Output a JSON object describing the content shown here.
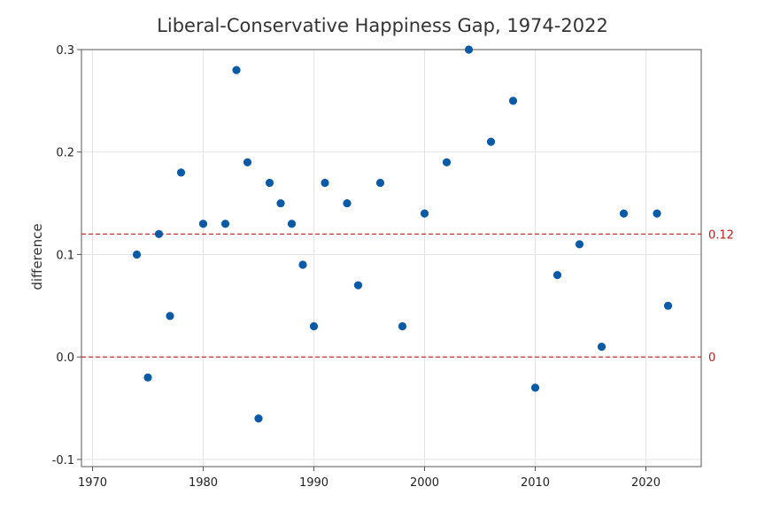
{
  "chart_data": {
    "type": "scatter",
    "title": "Liberal-Conservative Happiness Gap, 1974-2022",
    "xlabel": "",
    "ylabel": "difference",
    "xlim": [
      1969,
      2025
    ],
    "ylim": [
      -0.107,
      0.3
    ],
    "x_ticks": [
      1970,
      1980,
      1990,
      2000,
      2010,
      2020
    ],
    "x_tick_labels": [
      "1970",
      "1980",
      "1990",
      "2000",
      "2010",
      "2020"
    ],
    "y_ticks": [
      -0.1,
      0.0,
      0.1,
      0.2,
      0.3
    ],
    "y_tick_labels": [
      "-0.1",
      "0.0",
      "0.1",
      "0.2",
      "0.3"
    ],
    "grid": true,
    "marker_color": "#0b5aa5",
    "reference_color": "#b22222",
    "reference_lines": [
      {
        "y": 0.12,
        "label": "0.12"
      },
      {
        "y": 0.0,
        "label": "0"
      }
    ],
    "series": [
      {
        "x": [
          1974,
          1975,
          1976,
          1977,
          1978,
          1980,
          1982,
          1983,
          1984,
          1985,
          1986,
          1987,
          1988,
          1989,
          1990,
          1991,
          1993,
          1994,
          1996,
          1998,
          2000,
          2002,
          2004,
          2006,
          2008,
          2010,
          2012,
          2014,
          2016,
          2018,
          2021,
          2022
        ],
        "y": [
          0.1,
          -0.02,
          0.12,
          0.04,
          0.18,
          0.13,
          0.13,
          0.28,
          0.19,
          -0.06,
          0.17,
          0.15,
          0.13,
          0.09,
          0.03,
          0.17,
          0.15,
          0.07,
          0.17,
          0.03,
          0.14,
          0.19,
          0.3,
          0.21,
          0.25,
          -0.03,
          0.08,
          0.11,
          0.01,
          0.14,
          0.14,
          0.05
        ]
      }
    ]
  }
}
